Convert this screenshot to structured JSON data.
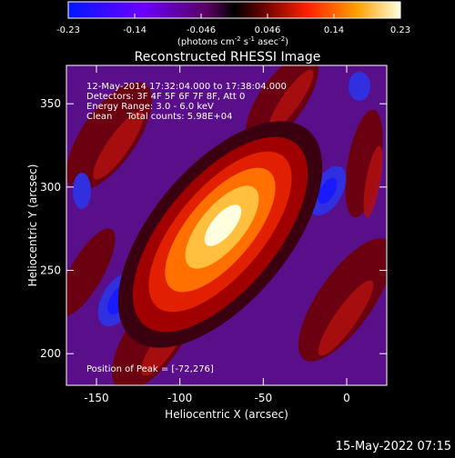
{
  "colorbar": {
    "tick_labels": [
      "-0.23",
      "-0.14",
      "-0.046",
      "0.046",
      "0.14",
      "0.23"
    ],
    "unit_label": "(photons cm",
    "unit_sup1": "-2",
    "unit_mid1": " s",
    "unit_sup2": "-1",
    "unit_mid2": " asec",
    "unit_sup3": "-2",
    "unit_end": ")",
    "range": [
      -0.23,
      0.23
    ]
  },
  "title": "Reconstructed RHESSI Image",
  "info": {
    "time_range": "12-May-2014 17:32:04.000 to 17:38:04.000",
    "detectors": "Detectors: 3F 4F 5F 6F 7F 8F, Att 0",
    "energy": "Energy Range: 3.0 - 6.0 keV",
    "clean": "Clean     Total counts: 5.98E+04",
    "peak": "Position of Peak = [-72,276]"
  },
  "axes": {
    "xlabel": "Heliocentric X (arcsec)",
    "ylabel": "Heliocentric Y (arcsec)",
    "xlim": [
      -168,
      24
    ],
    "ylim": [
      181,
      373
    ],
    "xticks": [
      -150,
      -100,
      -50,
      0
    ],
    "xtick_labels": [
      "-150",
      "-100",
      "-50",
      "0"
    ],
    "yticks": [
      200,
      250,
      300,
      350
    ],
    "ytick_labels": [
      "200",
      "250",
      "300",
      "350"
    ]
  },
  "footer_date": "15-May-2022 07:15"
}
